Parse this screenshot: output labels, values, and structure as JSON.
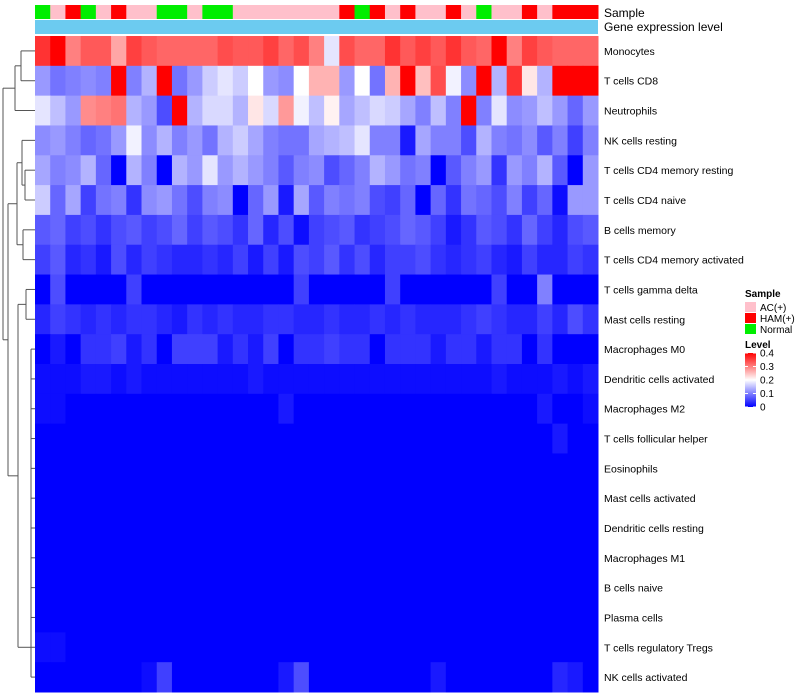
{
  "chart_data": {
    "type": "heatmap",
    "title": "",
    "annotation_labels": {
      "sample": "Sample",
      "gene_expression": "Gene expression level"
    },
    "sample_groups": [
      "Normal",
      "AC(+)",
      "HAM(+)",
      "Normal",
      "AC(+)",
      "HAM(+)",
      "AC(+)",
      "AC(+)",
      "Normal",
      "Normal",
      "AC(+)",
      "Normal",
      "Normal",
      "AC(+)",
      "AC(+)",
      "AC(+)",
      "AC(+)",
      "AC(+)",
      "AC(+)",
      "AC(+)",
      "HAM(+)",
      "Normal",
      "HAM(+)",
      "AC(+)",
      "HAM(+)",
      "AC(+)",
      "AC(+)",
      "HAM(+)",
      "AC(+)",
      "Normal",
      "AC(+)",
      "AC(+)",
      "HAM(+)",
      "AC(+)",
      "HAM(+)",
      "HAM(+)",
      "HAM(+)"
    ],
    "row_labels": [
      "Monocytes",
      "T cells CD8",
      "Neutrophils",
      "NK cells resting",
      "T cells CD4 memory resting",
      "T cells CD4 naive",
      "B cells memory",
      "T cells CD4 memory activated",
      "T cells gamma delta",
      "Mast cells resting",
      "Macrophages M0",
      "Dendritic cells activated",
      "Macrophages M2",
      "T cells follicular helper",
      "Eosinophils",
      "Mast cells activated",
      "Dendritic cells resting",
      "Macrophages M1",
      "B cells naive",
      "Plasma cells",
      "T cells regulatory  Tregs",
      "NK cells activated"
    ],
    "matrix": [
      [
        0.36,
        0.4,
        0.3,
        0.33,
        0.33,
        0.27,
        0.35,
        0.33,
        0.32,
        0.32,
        0.32,
        0.32,
        0.34,
        0.33,
        0.33,
        0.35,
        0.32,
        0.34,
        0.3,
        0.18,
        0.34,
        0.32,
        0.32,
        0.36,
        0.33,
        0.35,
        0.33,
        0.36,
        0.33,
        0.32,
        0.4,
        0.3,
        0.35,
        0.33,
        0.32,
        0.32,
        0.32
      ],
      [
        0.12,
        0.09,
        0.1,
        0.11,
        0.1,
        0.4,
        0.1,
        0.14,
        0.4,
        0.09,
        0.12,
        0.16,
        0.18,
        0.16,
        0.2,
        0.12,
        0.11,
        0.2,
        0.26,
        0.26,
        0.12,
        0.2,
        0.09,
        0.26,
        0.4,
        0.25,
        0.34,
        0.19,
        0.11,
        0.4,
        0.14,
        0.36,
        0.22,
        0.14,
        0.4,
        0.4,
        0.4
      ],
      [
        0.18,
        0.15,
        0.12,
        0.29,
        0.3,
        0.31,
        0.14,
        0.12,
        0.06,
        0.4,
        0.14,
        0.17,
        0.17,
        0.14,
        0.22,
        0.17,
        0.28,
        0.19,
        0.15,
        0.21,
        0.13,
        0.15,
        0.17,
        0.16,
        0.13,
        0.1,
        0.15,
        0.1,
        0.4,
        0.1,
        0.18,
        0.11,
        0.12,
        0.15,
        0.12,
        0.08,
        0.12
      ],
      [
        0.11,
        0.12,
        0.1,
        0.08,
        0.09,
        0.12,
        0.19,
        0.11,
        0.14,
        0.1,
        0.12,
        0.09,
        0.14,
        0.16,
        0.13,
        0.1,
        0.09,
        0.09,
        0.13,
        0.14,
        0.15,
        0.18,
        0.1,
        0.1,
        0.02,
        0.13,
        0.1,
        0.1,
        0.06,
        0.14,
        0.1,
        0.09,
        0.11,
        0.07,
        0.1,
        0.05,
        0.1
      ],
      [
        0.13,
        0.1,
        0.11,
        0.14,
        0.08,
        0.0,
        0.14,
        0.1,
        0.0,
        0.14,
        0.12,
        0.18,
        0.12,
        0.14,
        0.12,
        0.1,
        0.07,
        0.1,
        0.11,
        0.06,
        0.08,
        0.1,
        0.14,
        0.12,
        0.09,
        0.1,
        0.0,
        0.07,
        0.1,
        0.12,
        0.04,
        0.12,
        0.1,
        0.14,
        0.07,
        0.0,
        0.12
      ],
      [
        0.16,
        0.08,
        0.13,
        0.05,
        0.09,
        0.1,
        0.04,
        0.11,
        0.12,
        0.09,
        0.06,
        0.1,
        0.11,
        0.0,
        0.08,
        0.12,
        0.02,
        0.13,
        0.07,
        0.1,
        0.09,
        0.1,
        0.06,
        0.05,
        0.08,
        0.0,
        0.08,
        0.04,
        0.09,
        0.08,
        0.06,
        0.1,
        0.05,
        0.08,
        0.01,
        0.12,
        0.12
      ],
      [
        0.07,
        0.08,
        0.05,
        0.06,
        0.04,
        0.06,
        0.07,
        0.05,
        0.06,
        0.08,
        0.05,
        0.07,
        0.06,
        0.04,
        0.08,
        0.03,
        0.06,
        0.01,
        0.05,
        0.06,
        0.07,
        0.04,
        0.05,
        0.06,
        0.08,
        0.07,
        0.05,
        0.02,
        0.04,
        0.07,
        0.06,
        0.04,
        0.08,
        0.05,
        0.03,
        0.06,
        0.07
      ],
      [
        0.05,
        0.07,
        0.03,
        0.04,
        0.02,
        0.06,
        0.03,
        0.05,
        0.04,
        0.03,
        0.03,
        0.04,
        0.03,
        0.05,
        0.02,
        0.05,
        0.02,
        0.06,
        0.05,
        0.07,
        0.04,
        0.06,
        0.03,
        0.05,
        0.05,
        0.06,
        0.04,
        0.03,
        0.04,
        0.05,
        0.03,
        0.02,
        0.05,
        0.03,
        0.03,
        0.05,
        0.04
      ],
      [
        0.0,
        0.06,
        0.0,
        0.0,
        0.0,
        0.0,
        0.05,
        0.0,
        0.0,
        0.0,
        0.0,
        0.0,
        0.0,
        0.0,
        0.0,
        0.0,
        0.0,
        0.05,
        0.0,
        0.0,
        0.0,
        0.0,
        0.0,
        0.05,
        0.0,
        0.0,
        0.0,
        0.0,
        0.0,
        0.0,
        0.05,
        0.0,
        0.0,
        0.1,
        0.0,
        0.0,
        0.0
      ],
      [
        0.03,
        0.05,
        0.04,
        0.03,
        0.04,
        0.03,
        0.04,
        0.04,
        0.03,
        0.02,
        0.04,
        0.03,
        0.04,
        0.03,
        0.03,
        0.04,
        0.04,
        0.03,
        0.03,
        0.04,
        0.03,
        0.03,
        0.04,
        0.03,
        0.04,
        0.03,
        0.03,
        0.03,
        0.04,
        0.05,
        0.04,
        0.03,
        0.03,
        0.05,
        0.03,
        0.06,
        0.04
      ],
      [
        0.0,
        0.02,
        0.0,
        0.04,
        0.04,
        0.05,
        0.02,
        0.04,
        0.0,
        0.05,
        0.05,
        0.05,
        0.02,
        0.04,
        0.02,
        0.05,
        0.0,
        0.04,
        0.04,
        0.05,
        0.04,
        0.04,
        0.0,
        0.04,
        0.04,
        0.04,
        0.02,
        0.04,
        0.04,
        0.02,
        0.04,
        0.04,
        0.0,
        0.04,
        0.0,
        0.0,
        0.0
      ],
      [
        0.01,
        0.01,
        0.01,
        0.02,
        0.02,
        0.01,
        0.02,
        0.01,
        0.01,
        0.01,
        0.01,
        0.01,
        0.01,
        0.01,
        0.02,
        0.01,
        0.01,
        0.01,
        0.01,
        0.01,
        0.01,
        0.01,
        0.01,
        0.01,
        0.01,
        0.01,
        0.01,
        0.01,
        0.01,
        0.01,
        0.02,
        0.01,
        0.01,
        0.01,
        0.02,
        0.01,
        0.02
      ],
      [
        0.01,
        0.01,
        0.0,
        0.0,
        0.0,
        0.0,
        0.0,
        0.0,
        0.0,
        0.0,
        0.0,
        0.0,
        0.0,
        0.0,
        0.0,
        0.0,
        0.02,
        0.0,
        0.0,
        0.0,
        0.0,
        0.0,
        0.0,
        0.0,
        0.0,
        0.0,
        0.0,
        0.0,
        0.0,
        0.0,
        0.0,
        0.0,
        0.0,
        0.02,
        0.0,
        0.0,
        0.01
      ],
      [
        0.0,
        0.0,
        0.0,
        0.0,
        0.0,
        0.0,
        0.0,
        0.0,
        0.0,
        0.0,
        0.0,
        0.0,
        0.0,
        0.0,
        0.0,
        0.0,
        0.0,
        0.0,
        0.0,
        0.0,
        0.0,
        0.0,
        0.0,
        0.0,
        0.0,
        0.0,
        0.0,
        0.0,
        0.0,
        0.0,
        0.0,
        0.0,
        0.0,
        0.0,
        0.02,
        0.0,
        0.0
      ],
      [
        0.0,
        0.0,
        0.0,
        0.0,
        0.0,
        0.0,
        0.0,
        0.0,
        0.0,
        0.0,
        0.0,
        0.0,
        0.0,
        0.0,
        0.0,
        0.0,
        0.0,
        0.0,
        0.0,
        0.0,
        0.0,
        0.0,
        0.0,
        0.0,
        0.0,
        0.0,
        0.0,
        0.0,
        0.0,
        0.0,
        0.0,
        0.0,
        0.0,
        0.0,
        0.0,
        0.0,
        0.0
      ],
      [
        0.0,
        0.0,
        0.0,
        0.0,
        0.0,
        0.0,
        0.0,
        0.0,
        0.0,
        0.0,
        0.0,
        0.0,
        0.0,
        0.0,
        0.0,
        0.0,
        0.0,
        0.0,
        0.0,
        0.0,
        0.0,
        0.0,
        0.0,
        0.0,
        0.0,
        0.0,
        0.0,
        0.0,
        0.0,
        0.0,
        0.0,
        0.0,
        0.0,
        0.0,
        0.0,
        0.0,
        0.0
      ],
      [
        0.0,
        0.0,
        0.0,
        0.0,
        0.0,
        0.0,
        0.0,
        0.0,
        0.0,
        0.0,
        0.0,
        0.0,
        0.0,
        0.0,
        0.0,
        0.0,
        0.0,
        0.0,
        0.0,
        0.0,
        0.0,
        0.0,
        0.0,
        0.0,
        0.0,
        0.0,
        0.0,
        0.0,
        0.0,
        0.0,
        0.0,
        0.0,
        0.0,
        0.0,
        0.0,
        0.0,
        0.0
      ],
      [
        0.0,
        0.0,
        0.0,
        0.0,
        0.0,
        0.0,
        0.0,
        0.0,
        0.0,
        0.0,
        0.0,
        0.0,
        0.0,
        0.0,
        0.0,
        0.0,
        0.0,
        0.0,
        0.0,
        0.0,
        0.0,
        0.0,
        0.0,
        0.0,
        0.0,
        0.0,
        0.0,
        0.0,
        0.0,
        0.0,
        0.0,
        0.0,
        0.0,
        0.0,
        0.0,
        0.0,
        0.0
      ],
      [
        0.0,
        0.0,
        0.0,
        0.0,
        0.0,
        0.0,
        0.0,
        0.0,
        0.0,
        0.0,
        0.0,
        0.0,
        0.0,
        0.0,
        0.0,
        0.0,
        0.0,
        0.0,
        0.0,
        0.0,
        0.0,
        0.0,
        0.0,
        0.0,
        0.0,
        0.0,
        0.0,
        0.0,
        0.0,
        0.0,
        0.0,
        0.0,
        0.0,
        0.0,
        0.0,
        0.0,
        0.0
      ],
      [
        0.0,
        0.0,
        0.0,
        0.0,
        0.0,
        0.0,
        0.0,
        0.0,
        0.0,
        0.0,
        0.0,
        0.0,
        0.0,
        0.0,
        0.0,
        0.0,
        0.0,
        0.0,
        0.0,
        0.0,
        0.0,
        0.0,
        0.0,
        0.0,
        0.0,
        0.0,
        0.0,
        0.0,
        0.0,
        0.0,
        0.0,
        0.0,
        0.0,
        0.0,
        0.0,
        0.0,
        0.0
      ],
      [
        0.01,
        0.01,
        0.0,
        0.0,
        0.0,
        0.0,
        0.0,
        0.0,
        0.0,
        0.0,
        0.0,
        0.0,
        0.0,
        0.0,
        0.0,
        0.0,
        0.0,
        0.0,
        0.0,
        0.0,
        0.0,
        0.0,
        0.0,
        0.0,
        0.0,
        0.0,
        0.0,
        0.0,
        0.0,
        0.0,
        0.0,
        0.0,
        0.0,
        0.0,
        0.0,
        0.0,
        0.0
      ],
      [
        0.0,
        0.0,
        0.0,
        0.0,
        0.0,
        0.0,
        0.0,
        0.01,
        0.05,
        0.0,
        0.0,
        0.0,
        0.0,
        0.0,
        0.0,
        0.0,
        0.02,
        0.06,
        0.0,
        0.0,
        0.0,
        0.0,
        0.0,
        0.0,
        0.0,
        0.0,
        0.02,
        0.0,
        0.0,
        0.0,
        0.0,
        0.0,
        0.0,
        0.0,
        0.03,
        0.02,
        0.0
      ]
    ],
    "legend": {
      "sample_title": "Sample",
      "sample_items": [
        {
          "label": "AC(+)",
          "color": "#ffc0cb"
        },
        {
          "label": "HAM(+)",
          "color": "#ff0000"
        },
        {
          "label": "Normal",
          "color": "#00ee00"
        }
      ],
      "level_title": "Level",
      "level_ticks": [
        0.4,
        0.3,
        0.2,
        0.1,
        0
      ],
      "range": [
        0,
        0.4
      ]
    },
    "colors": {
      "low": "#0000ff",
      "mid": "#ffffff",
      "high": "#ff0000",
      "gene_expression": "#6ccbf0"
    }
  }
}
